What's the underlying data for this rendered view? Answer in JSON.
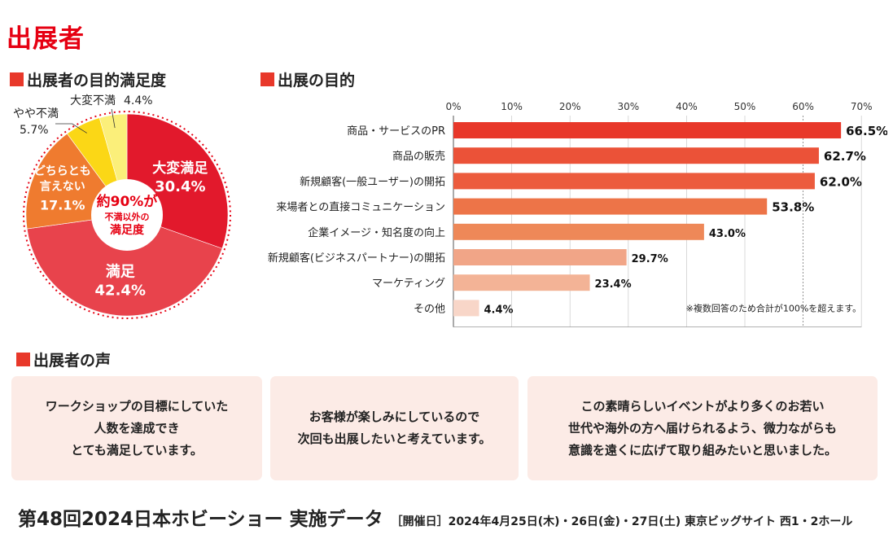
{
  "title": "出展者",
  "sections": {
    "satisfaction": "出展者の目的満足度",
    "purpose": "出展の目的",
    "voices": "出展者の声"
  },
  "colors": {
    "red": "#e60012",
    "pie": [
      "#e2192c",
      "#e8434c",
      "#ef7b2f",
      "#fbd716",
      "#fbef7a"
    ],
    "bars": [
      "#e8382a",
      "#eb5238",
      "#ec5b3d",
      "#ed7448",
      "#ee8858",
      "#f1a587",
      "#f3b396",
      "#f8d6c8"
    ]
  },
  "chart_data": [
    {
      "type": "pie",
      "title": "出展者の目的満足度",
      "slices": [
        {
          "label": "大変満足",
          "value": 30.4,
          "value_text": "30.4%"
        },
        {
          "label": "満足",
          "value": 42.4,
          "value_text": "42.4%"
        },
        {
          "label": "どちらとも\n言えない",
          "value": 17.1,
          "value_text": "17.1%"
        },
        {
          "label": "やや不満",
          "value": 5.7,
          "value_text": "5.7%"
        },
        {
          "label": "大変不満",
          "value": 4.4,
          "value_text": "4.4%"
        }
      ],
      "center_text": [
        "約90%が",
        "不満以外の",
        "満足度"
      ]
    },
    {
      "type": "bar",
      "orientation": "horizontal",
      "title": "出展の目的",
      "categories": [
        "商品・サービスのPR",
        "商品の販売",
        "新規顧客(一般ユーザー)の開拓",
        "来場者との直接コミュニケーション",
        "企業イメージ・知名度の向上",
        "新規顧客(ビジネスパートナー)の開拓",
        "マーケティング",
        "その他"
      ],
      "values": [
        66.5,
        62.7,
        62.0,
        53.8,
        43.0,
        29.7,
        23.4,
        4.4
      ],
      "value_labels": [
        "66.5%",
        "62.7%",
        "62.0%",
        "53.8%",
        "43.0%",
        "29.7%",
        "23.4%",
        "4.4%"
      ],
      "xlim": [
        0,
        70
      ],
      "xticks": [
        "0%",
        "10%",
        "20%",
        "30%",
        "40%",
        "50%",
        "60%",
        "70%"
      ],
      "note": "※複数回答のため合計が100%を超えます。"
    }
  ],
  "voices": [
    "ワークショップの目標にしていた\n人数を達成でき\nとても満足しています。",
    "お客様が楽しみにしているので\n次回も出展したいと考えています。",
    "この素晴らしいイベントがより多くのお若い\n世代や海外の方へ届けられるよう、微力ながらも\n意識を遠くに広げて取り組みたいと思いました。"
  ],
  "footer": {
    "event": "第48回2024日本ホビーショー 実施データ",
    "info": "［開催日］2024年4月25日(木)・26日(金)・27日(土) 東京ビッグサイト 西1・2ホール"
  }
}
